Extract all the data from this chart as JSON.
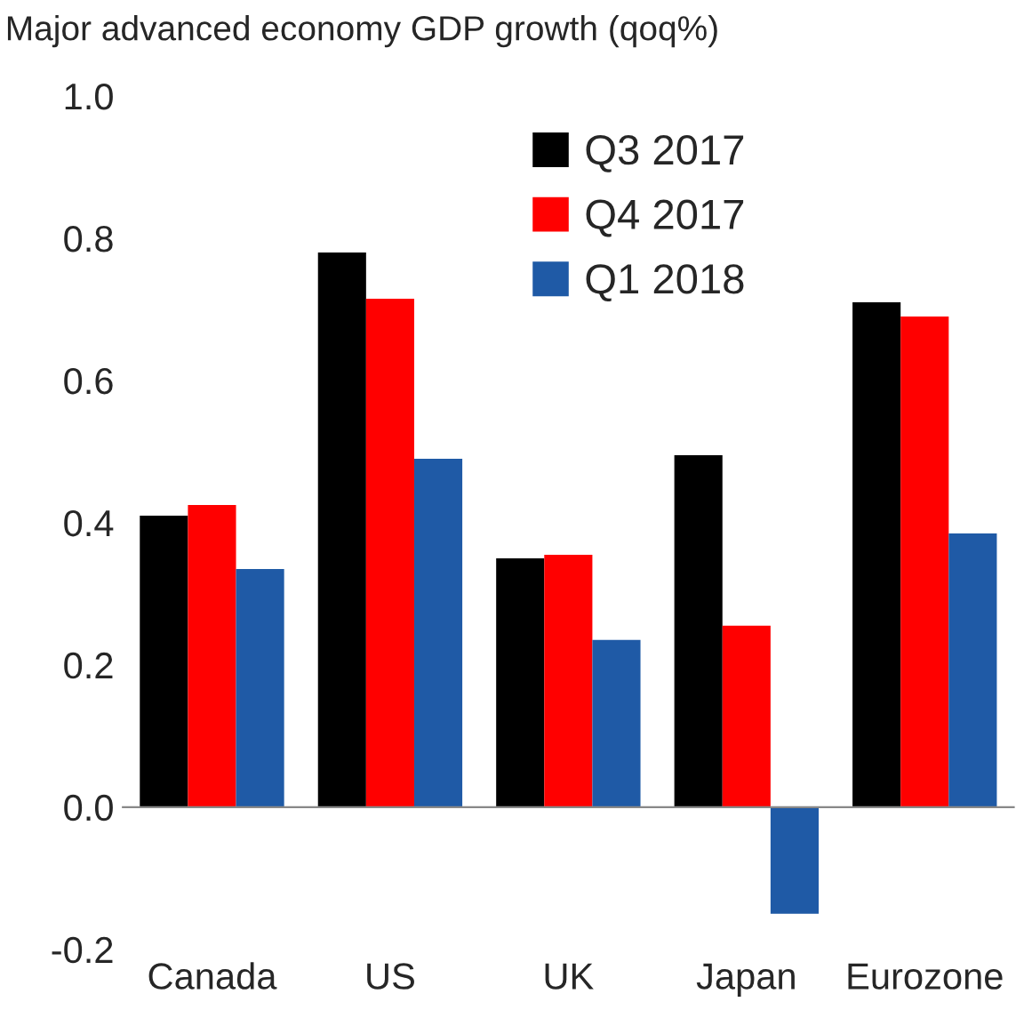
{
  "chart_data": {
    "type": "bar",
    "title": "Major advanced economy GDP growth (qoq%)",
    "categories": [
      "Canada",
      "US",
      "UK",
      "Japan",
      "Eurozone"
    ],
    "series": [
      {
        "name": "Q3 2017",
        "color": "#000000",
        "values": [
          0.41,
          0.78,
          0.35,
          0.495,
          0.71
        ]
      },
      {
        "name": "Q4 2017",
        "color": "#ff0000",
        "values": [
          0.425,
          0.715,
          0.355,
          0.255,
          0.69
        ]
      },
      {
        "name": "Q1 2018",
        "color": "#1f5aa6",
        "values": [
          0.335,
          0.49,
          0.235,
          -0.15,
          0.385
        ]
      }
    ],
    "ylim": [
      -0.2,
      1.0
    ],
    "yticks": [
      {
        "value": -0.2,
        "label": "-0.2"
      },
      {
        "value": 0,
        "label": "0.0"
      },
      {
        "value": 0.2,
        "label": "0.2"
      },
      {
        "value": 0.4,
        "label": "0.4"
      },
      {
        "value": 0.6,
        "label": "0.6"
      },
      {
        "value": 0.8,
        "label": "0.8"
      },
      {
        "value": 1.0,
        "label": "1.0"
      }
    ],
    "legend": "top"
  }
}
